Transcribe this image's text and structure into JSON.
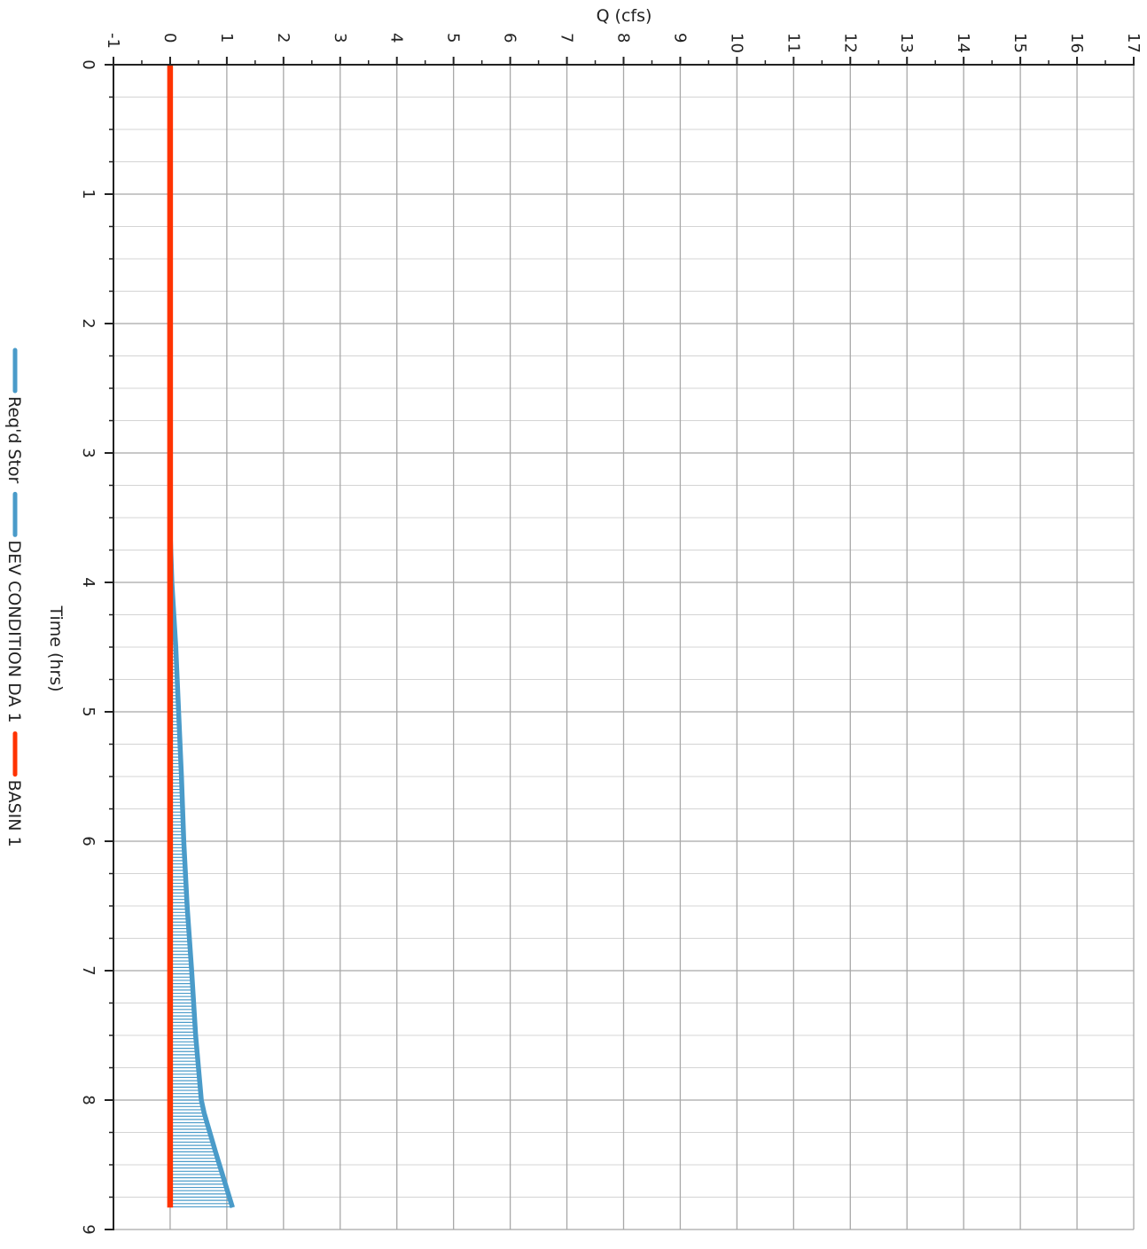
{
  "chart_data": {
    "type": "line",
    "orientation": "rotated-90",
    "xlabel": "Time (hrs)",
    "ylabel": "Q (cfs)",
    "xlim": [
      0,
      9
    ],
    "ylim": [
      -1,
      17
    ],
    "x_ticks": [
      "0",
      "1",
      "2",
      "3",
      "4",
      "5",
      "6",
      "7",
      "8",
      "9"
    ],
    "y_ticks": [
      "-1",
      "0",
      "1",
      "2",
      "3",
      "4",
      "5",
      "6",
      "7",
      "8",
      "9",
      "10",
      "11",
      "12",
      "13",
      "14",
      "15",
      "16",
      "17"
    ],
    "grid": true,
    "legend": {
      "placement": "left",
      "entries": [
        {
          "label": "Req'd Stor",
          "color": "#4a9bc9"
        },
        {
          "label": "DEV CONDITION DA 1",
          "color": "#4a9bc9"
        },
        {
          "label": "BASIN 1",
          "color": "#ff3300"
        }
      ]
    },
    "series": [
      {
        "name": "DEV CONDITION DA 1",
        "color": "#4a9bc9",
        "x": [
          3.6,
          4.0,
          4.5,
          5.0,
          5.5,
          6.0,
          6.5,
          7.0,
          7.5,
          8.0,
          8.1,
          8.4,
          8.83
        ],
        "y": [
          0.0,
          0.03,
          0.1,
          0.15,
          0.2,
          0.24,
          0.3,
          0.38,
          0.45,
          0.55,
          0.6,
          0.8,
          1.1
        ]
      },
      {
        "name": "BASIN 1",
        "color": "#ff3300",
        "x": [
          0.0,
          8.83
        ],
        "y": [
          0.0,
          0.0
        ]
      }
    ],
    "shaded": {
      "name": "Req'd Stor",
      "color": "#4a9bc9",
      "between": [
        "BASIN 1",
        "DEV CONDITION DA 1"
      ]
    }
  }
}
